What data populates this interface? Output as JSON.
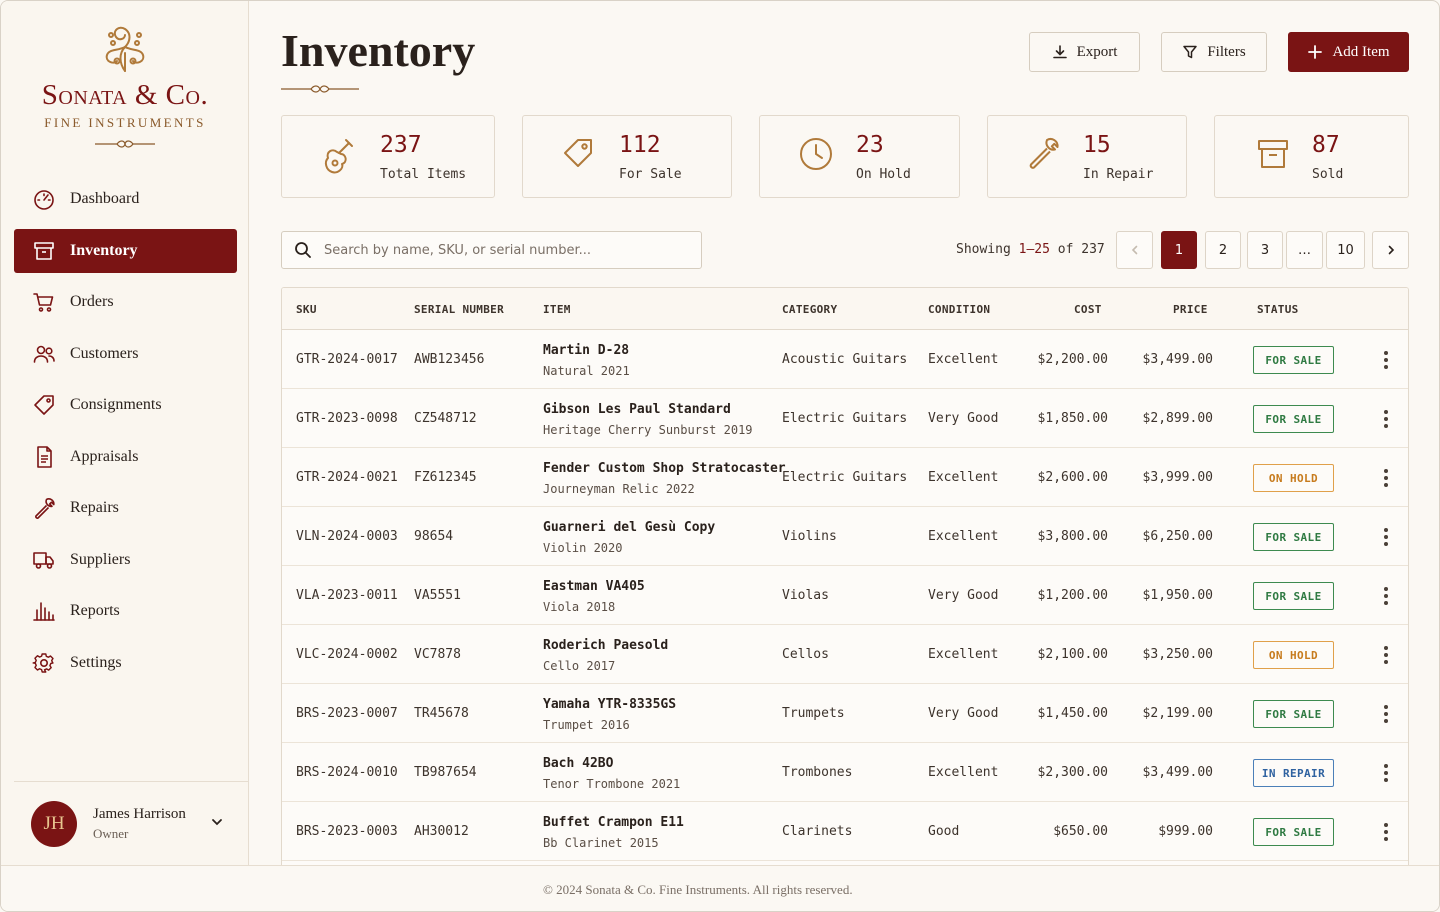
{
  "brand": {
    "name": "Sonata & Co.",
    "tagline": "FINE INSTRUMENTS"
  },
  "nav": {
    "items": [
      {
        "label": "Dashboard",
        "icon": "gauge-icon"
      },
      {
        "label": "Inventory",
        "icon": "archive-box-icon",
        "active": true
      },
      {
        "label": "Orders",
        "icon": "cart-icon"
      },
      {
        "label": "Customers",
        "icon": "users-icon"
      },
      {
        "label": "Consignments",
        "icon": "tag-icon"
      },
      {
        "label": "Appraisals",
        "icon": "document-icon"
      },
      {
        "label": "Repairs",
        "icon": "wrench-icon"
      },
      {
        "label": "Suppliers",
        "icon": "truck-icon"
      },
      {
        "label": "Reports",
        "icon": "bar-chart-icon"
      },
      {
        "label": "Settings",
        "icon": "gear-icon"
      }
    ]
  },
  "user": {
    "initials": "JH",
    "name": "James Harrison",
    "role": "Owner"
  },
  "page": {
    "title": "Inventory"
  },
  "actions": {
    "export": "Export",
    "filters": "Filters",
    "add": "Add Item"
  },
  "stats": [
    {
      "value": "237",
      "label": "Total Items",
      "icon": "guitar-icon"
    },
    {
      "value": "112",
      "label": "For Sale",
      "icon": "tag-icon"
    },
    {
      "value": "23",
      "label": "On Hold",
      "icon": "clock-icon"
    },
    {
      "value": "15",
      "label": "In Repair",
      "icon": "wrench-icon"
    },
    {
      "value": "87",
      "label": "Sold",
      "icon": "archive-box-icon"
    }
  ],
  "search": {
    "placeholder": "Search by name, SKU, or serial number..."
  },
  "pagination": {
    "showing_prefix": "Showing",
    "range": "1–25",
    "of": "of",
    "total": "237",
    "pages": [
      "1",
      "2",
      "3",
      "…",
      "10"
    ],
    "current": "1"
  },
  "table": {
    "columns": [
      "SKU",
      "SERIAL NUMBER",
      "ITEM",
      "CATEGORY",
      "CONDITION",
      "COST",
      "PRICE",
      "STATUS"
    ],
    "rows": [
      {
        "sku": "GTR-2024-0017",
        "serial": "AWB123456",
        "name": "Martin D-28",
        "sub": "Natural  2021",
        "category": "Acoustic Guitars",
        "condition": "Excellent",
        "cost": "$2,200.00",
        "price": "$3,499.00",
        "status": "FOR SALE",
        "status_type": "sale"
      },
      {
        "sku": "GTR-2023-0098",
        "serial": "CZ548712",
        "name": "Gibson Les Paul Standard",
        "sub": "Heritage Cherry Sunburst  2019",
        "category": "Electric Guitars",
        "condition": "Very Good",
        "cost": "$1,850.00",
        "price": "$2,899.00",
        "status": "FOR SALE",
        "status_type": "sale"
      },
      {
        "sku": "GTR-2024-0021",
        "serial": "FZ612345",
        "name": "Fender Custom Shop Stratocaster",
        "sub": "Journeyman Relic  2022",
        "category": "Electric Guitars",
        "condition": "Excellent",
        "cost": "$2,600.00",
        "price": "$3,999.00",
        "status": "ON HOLD",
        "status_type": "hold"
      },
      {
        "sku": "VLN-2024-0003",
        "serial": "98654",
        "name": "Guarneri del Gesù Copy",
        "sub": "Violin  2020",
        "category": "Violins",
        "condition": "Excellent",
        "cost": "$3,800.00",
        "price": "$6,250.00",
        "status": "FOR SALE",
        "status_type": "sale"
      },
      {
        "sku": "VLA-2023-0011",
        "serial": "VA5551",
        "name": "Eastman VA405",
        "sub": "Viola  2018",
        "category": "Violas",
        "condition": "Very Good",
        "cost": "$1,200.00",
        "price": "$1,950.00",
        "status": "FOR SALE",
        "status_type": "sale"
      },
      {
        "sku": "VLC-2024-0002",
        "serial": "VC7878",
        "name": "Roderich Paesold",
        "sub": "Cello  2017",
        "category": "Cellos",
        "condition": "Excellent",
        "cost": "$2,100.00",
        "price": "$3,250.00",
        "status": "ON HOLD",
        "status_type": "hold"
      },
      {
        "sku": "BRS-2023-0007",
        "serial": "TR45678",
        "name": "Yamaha YTR-8335GS",
        "sub": "Trumpet  2016",
        "category": "Trumpets",
        "condition": "Very Good",
        "cost": "$1,450.00",
        "price": "$2,199.00",
        "status": "FOR SALE",
        "status_type": "sale"
      },
      {
        "sku": "BRS-2024-0010",
        "serial": "TB987654",
        "name": "Bach 42BO",
        "sub": "Tenor Trombone  2021",
        "category": "Trombones",
        "condition": "Excellent",
        "cost": "$2,300.00",
        "price": "$3,499.00",
        "status": "IN REPAIR",
        "status_type": "repair"
      },
      {
        "sku": "BRS-2023-0003",
        "serial": "AH30012",
        "name": "Buffet Crampon E11",
        "sub": "Bb Clarinet  2015",
        "category": "Clarinets",
        "condition": "Good",
        "cost": "$650.00",
        "price": "$999.00",
        "status": "FOR SALE",
        "status_type": "sale"
      }
    ]
  },
  "footer": {
    "text": "© 2024 Sonata & Co. Fine Instruments. All rights reserved."
  },
  "colors": {
    "accent": "#7a1414",
    "for_sale": "#2f7a42",
    "on_hold": "#c77b1d",
    "in_repair": "#2f62a0",
    "background": "#fbf8f3"
  }
}
